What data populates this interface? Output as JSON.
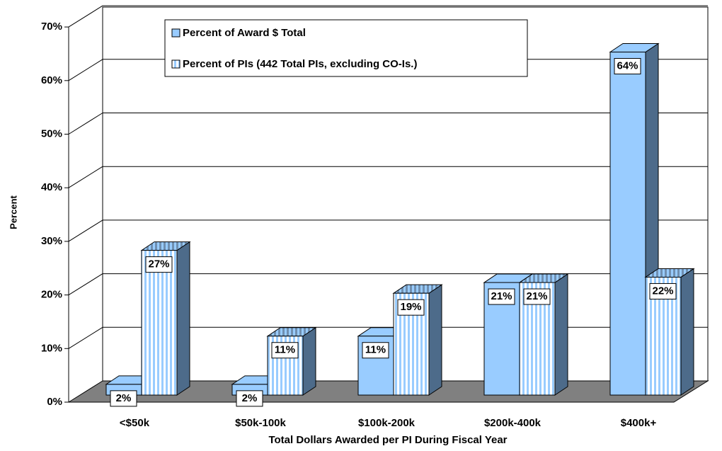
{
  "chart_data": {
    "type": "bar3d",
    "categories": [
      "<$50k",
      "$50k-100k",
      "$100k-200k",
      "$200k-400k",
      "$400k+"
    ],
    "series": [
      {
        "name": "Percent of Award $ Total",
        "color": "#99ccff",
        "pattern": "solid",
        "values": [
          2,
          2,
          11,
          21,
          64
        ],
        "value_labels": [
          "2%",
          "2%",
          "11%",
          "21%",
          "64%"
        ]
      },
      {
        "name": "Percent of PIs (442 Total PIs, excluding CO-Is.)",
        "color": "#99ccff",
        "pattern": "vertical-stripes",
        "values": [
          27,
          11,
          19,
          21,
          22
        ],
        "value_labels": [
          "27%",
          "11%",
          "19%",
          "21%",
          "22%"
        ]
      }
    ],
    "ylim": [
      0,
      70
    ],
    "yticks": [
      {
        "value": 0,
        "label": "0%"
      },
      {
        "value": 10,
        "label": "10%"
      },
      {
        "value": 20,
        "label": "20%"
      },
      {
        "value": 30,
        "label": "30%"
      },
      {
        "value": 40,
        "label": "40%"
      },
      {
        "value": 50,
        "label": "50%"
      },
      {
        "value": 60,
        "label": "60%"
      },
      {
        "value": 70,
        "label": "70%"
      }
    ],
    "y_label": "Percent",
    "x_label": "Total Dollars Awarded per PI During Fiscal Year",
    "grid": true,
    "legend": "top-left"
  }
}
